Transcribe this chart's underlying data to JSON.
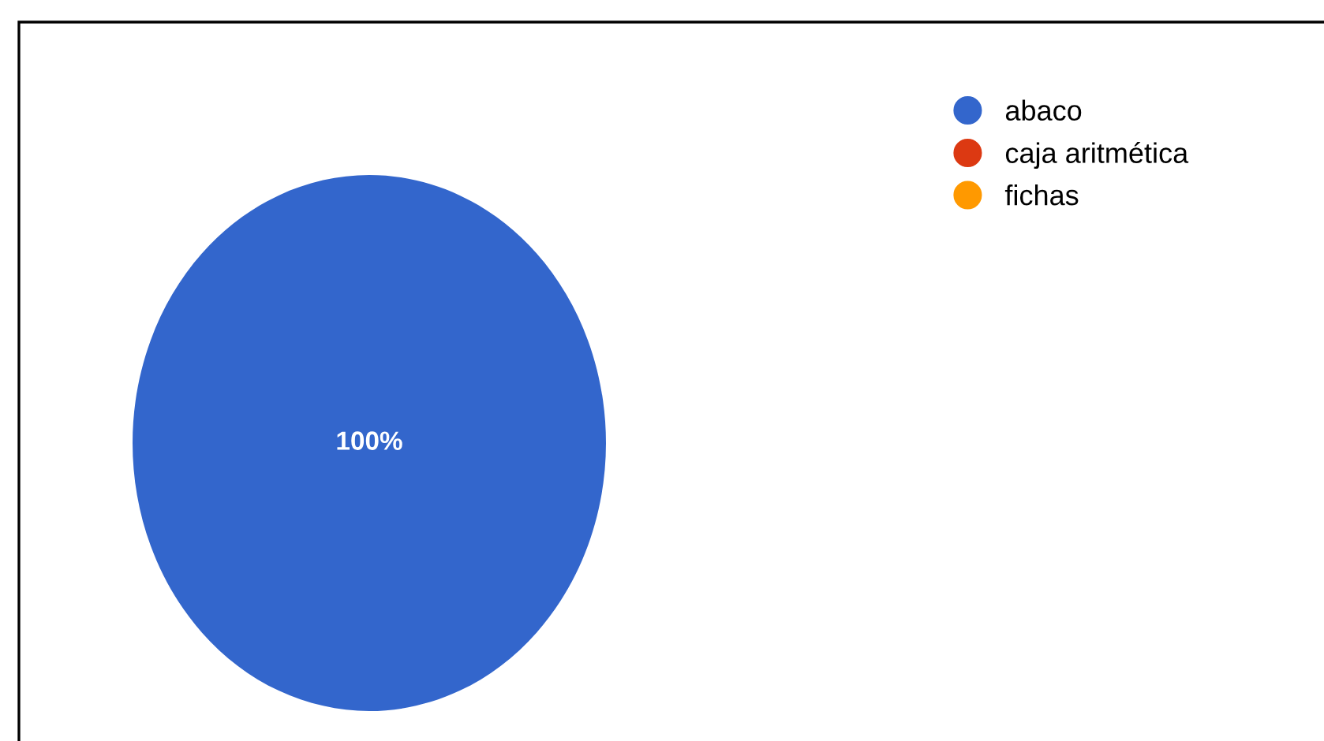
{
  "chart_data": {
    "type": "pie",
    "categories": [
      "abaco",
      "caja aritmética",
      "fichas"
    ],
    "values": [
      100,
      0,
      0
    ],
    "colors": [
      "#3366cc",
      "#dc3912",
      "#ff9900"
    ],
    "value_labels": [
      "100%",
      null,
      null
    ],
    "legend": "top right"
  }
}
